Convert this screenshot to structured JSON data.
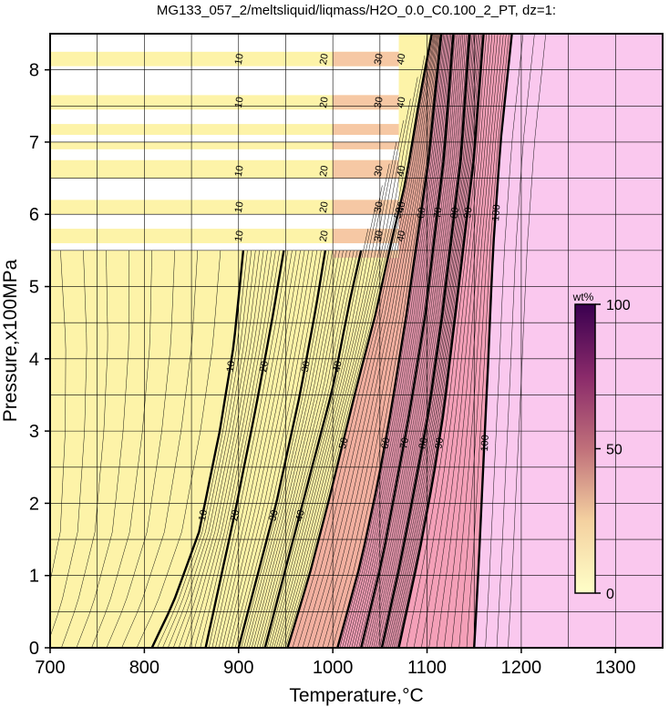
{
  "chart_data": {
    "type": "contour",
    "title": "MG133_057_2/meltsliquid/liqmass/H2O_0.0_C0.100_2_PT, dz=1:",
    "xlabel": "Temperature,°C",
    "ylabel": "Pressure,x100MPa",
    "xlim": [
      700,
      1350
    ],
    "ylim": [
      0,
      8.5
    ],
    "xticks": [
      "700",
      "800",
      "900",
      "1000",
      "1100",
      "1200",
      "1300"
    ],
    "yticks": [
      "0",
      "1",
      "2",
      "3",
      "4",
      "5",
      "6",
      "7",
      "8"
    ],
    "grid": true,
    "colorbar": {
      "unit": "wt%",
      "ticks": [
        "0",
        "50",
        "100"
      ],
      "range": [
        0,
        100
      ],
      "colors": [
        "#fdf3a8",
        "#f2b0a0",
        "#f4a0b8",
        "#fac8ee"
      ]
    },
    "contour_interval": 1,
    "labeled_contours": [
      {
        "value": 10,
        "label": "10",
        "points": [
          [
            808,
            0
          ],
          [
            830,
            0.6
          ],
          [
            858,
            1.6
          ],
          [
            880,
            3.0
          ],
          [
            895,
            4.2
          ],
          [
            905,
            5.5
          ]
        ]
      },
      {
        "value": 20,
        "label": "20",
        "points": [
          [
            865,
            0
          ],
          [
            880,
            0.9
          ],
          [
            895,
            1.8
          ],
          [
            918,
            3.3
          ],
          [
            935,
            4.5
          ],
          [
            948,
            5.5
          ]
        ]
      },
      {
        "value": 30,
        "label": "30",
        "points": [
          [
            900,
            0
          ],
          [
            920,
            1.0
          ],
          [
            940,
            2.0
          ],
          [
            965,
            3.5
          ],
          [
            982,
            4.7
          ],
          [
            992,
            5.5
          ]
        ]
      },
      {
        "value": 40,
        "label": "40",
        "points": [
          [
            928,
            0
          ],
          [
            948,
            1.0
          ],
          [
            970,
            2.1
          ],
          [
            1000,
            3.6
          ],
          [
            1018,
            4.8
          ],
          [
            1030,
            5.5
          ]
        ]
      },
      {
        "value": 50,
        "label": "50",
        "points": [
          [
            952,
            0
          ],
          [
            975,
            1.0
          ],
          [
            995,
            2.0
          ],
          [
            1025,
            3.6
          ],
          [
            1045,
            4.6
          ],
          [
            1060,
            5.5
          ],
          [
            1078,
            6.5
          ],
          [
            1092,
            7.6
          ],
          [
            1105,
            8.5
          ]
        ]
      },
      {
        "value": 60,
        "label": "60",
        "points": [
          [
            1005,
            0
          ],
          [
            1030,
            1.2
          ],
          [
            1048,
            2.3
          ],
          [
            1062,
            3.3
          ],
          [
            1078,
            4.6
          ],
          [
            1090,
            5.7
          ],
          [
            1102,
            6.8
          ],
          [
            1115,
            8.5
          ]
        ]
      },
      {
        "value": 70,
        "label": "70",
        "points": [
          [
            1030,
            0
          ],
          [
            1052,
            1.2
          ],
          [
            1068,
            2.3
          ],
          [
            1082,
            3.3
          ],
          [
            1098,
            4.6
          ],
          [
            1108,
            5.7
          ],
          [
            1118,
            6.8
          ],
          [
            1128,
            8.5
          ]
        ]
      },
      {
        "value": 80,
        "label": "80",
        "points": [
          [
            1052,
            0
          ],
          [
            1072,
            1.2
          ],
          [
            1088,
            2.3
          ],
          [
            1102,
            3.3
          ],
          [
            1116,
            4.6
          ],
          [
            1126,
            5.7
          ],
          [
            1136,
            6.8
          ],
          [
            1145,
            8.5
          ]
        ]
      },
      {
        "value": 90,
        "label": "90",
        "points": [
          [
            1070,
            0
          ],
          [
            1090,
            1.2
          ],
          [
            1106,
            2.3
          ],
          [
            1118,
            3.3
          ],
          [
            1130,
            4.6
          ],
          [
            1140,
            5.7
          ],
          [
            1150,
            6.8
          ],
          [
            1160,
            8.5
          ]
        ]
      },
      {
        "value": 100,
        "label": "100",
        "points": [
          [
            1150,
            0
          ],
          [
            1155,
            1.2
          ],
          [
            1160,
            2.6
          ],
          [
            1165,
            4.0
          ],
          [
            1170,
            5.5
          ],
          [
            1178,
            7.0
          ],
          [
            1190,
            8.5
          ]
        ]
      }
    ],
    "band_labels": [
      {
        "p": 8.15,
        "labels": [
          "10",
          "20",
          "30",
          "40"
        ],
        "t": [
          900,
          990,
          1048,
          1072
        ]
      },
      {
        "p": 7.55,
        "labels": [
          "10",
          "20",
          "30",
          "40"
        ],
        "t": [
          900,
          990,
          1048,
          1072
        ]
      },
      {
        "p": 6.6,
        "labels": [
          "10",
          "20",
          "30",
          "40"
        ],
        "t": [
          900,
          990,
          1048,
          1072
        ]
      },
      {
        "p": 6.1,
        "labels": [
          "10",
          "20",
          "30",
          "40"
        ],
        "t": [
          900,
          990,
          1048,
          1072
        ]
      },
      {
        "p": 5.7,
        "labels": [
          "10",
          "20",
          "30",
          "40"
        ],
        "t": [
          900,
          990,
          1048,
          1072
        ]
      }
    ],
    "bands": [
      {
        "p0": 8.05,
        "p1": 8.25
      },
      {
        "p0": 7.45,
        "p1": 7.65
      },
      {
        "p0": 7.1,
        "p1": 7.25
      },
      {
        "p0": 6.9,
        "p1": 7.0
      },
      {
        "p0": 6.5,
        "p1": 6.75
      },
      {
        "p0": 6.0,
        "p1": 6.2
      },
      {
        "p0": 5.6,
        "p1": 5.8
      },
      {
        "p0": 5.4,
        "p1": 5.5
      }
    ]
  }
}
